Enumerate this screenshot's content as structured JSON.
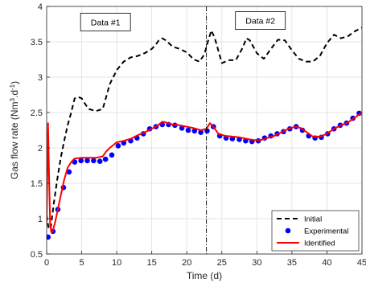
{
  "chart_data": {
    "type": "line",
    "xlabel": "Time (d)",
    "ylabel": "Gas flow rate (Nm",
    "ylabel_sup1": "3",
    "ylabel_mid": ".d",
    "ylabel_sup2": "-1",
    "ylabel_end": ")",
    "xlim": [
      0,
      45
    ],
    "ylim": [
      0.5,
      4
    ],
    "xticks": [
      0,
      5,
      10,
      15,
      20,
      25,
      30,
      35,
      40,
      45
    ],
    "yticks": [
      0.5,
      1,
      1.5,
      2,
      2.5,
      3,
      3.5,
      4
    ],
    "grid": true,
    "legend_position": "bottom-right",
    "split_line_x": 22.8,
    "annotations": [
      {
        "text": "Data #1",
        "x": 8.4,
        "y": 3.78
      },
      {
        "text": "Data #2",
        "x": 30.5,
        "y": 3.8
      }
    ],
    "series": [
      {
        "name": "Initial",
        "style": "dashed",
        "color": "#000000",
        "x": [
          0,
          0.3,
          0.6,
          1,
          1.5,
          2,
          2.5,
          3,
          3.5,
          4,
          4.5,
          5,
          5.5,
          6,
          7,
          8,
          8.5,
          9,
          9.5,
          10,
          11,
          12,
          13,
          14,
          15,
          15.5,
          16,
          16.5,
          17,
          18,
          19,
          20,
          21,
          21.8,
          22.5,
          23,
          23.5,
          24,
          25,
          26,
          27,
          28,
          28.5,
          29,
          30,
          31,
          32,
          33,
          34,
          35,
          36,
          37,
          38,
          39,
          40,
          41,
          42,
          43,
          44,
          45
        ],
        "y": [
          1.05,
          0.85,
          0.88,
          1.2,
          1.55,
          1.85,
          2.1,
          2.32,
          2.5,
          2.7,
          2.72,
          2.7,
          2.62,
          2.55,
          2.52,
          2.55,
          2.72,
          2.9,
          3.0,
          3.1,
          3.22,
          3.28,
          3.3,
          3.34,
          3.4,
          3.45,
          3.52,
          3.55,
          3.52,
          3.43,
          3.4,
          3.35,
          3.25,
          3.22,
          3.32,
          3.5,
          3.66,
          3.55,
          3.2,
          3.24,
          3.24,
          3.42,
          3.55,
          3.52,
          3.34,
          3.26,
          3.4,
          3.53,
          3.52,
          3.38,
          3.26,
          3.22,
          3.22,
          3.3,
          3.48,
          3.6,
          3.55,
          3.58,
          3.65,
          3.7
        ]
      },
      {
        "name": "Experimental",
        "style": "markers",
        "color": "#0000ff",
        "x": [
          0.2,
          0.9,
          1.6,
          2.4,
          3.2,
          4.0,
          4.9,
          5.8,
          6.7,
          7.6,
          8.4,
          9.3,
          10.2,
          11.0,
          12.0,
          12.9,
          13.8,
          14.7,
          15.6,
          16.5,
          17.4,
          18.3,
          19.3,
          20.2,
          21.1,
          22.0,
          22.9,
          23.8,
          24.7,
          25.6,
          26.5,
          27.5,
          28.4,
          29.3,
          30.2,
          31.1,
          32.0,
          32.9,
          33.8,
          34.7,
          35.6,
          36.5,
          37.4,
          38.3,
          39.2,
          40.1,
          41.0,
          41.9,
          42.8,
          43.7,
          44.6
        ],
        "y": [
          0.74,
          0.82,
          1.13,
          1.44,
          1.66,
          1.8,
          1.82,
          1.82,
          1.82,
          1.81,
          1.84,
          1.9,
          2.03,
          2.07,
          2.1,
          2.14,
          2.2,
          2.27,
          2.3,
          2.33,
          2.33,
          2.32,
          2.28,
          2.25,
          2.24,
          2.22,
          2.24,
          2.3,
          2.17,
          2.14,
          2.13,
          2.12,
          2.1,
          2.09,
          2.1,
          2.14,
          2.17,
          2.2,
          2.23,
          2.27,
          2.3,
          2.25,
          2.17,
          2.14,
          2.15,
          2.2,
          2.27,
          2.32,
          2.35,
          2.42,
          2.49
        ]
      },
      {
        "name": "Identified",
        "style": "solid",
        "color": "#ff0000",
        "x": [
          0,
          0.2,
          0.35,
          0.5,
          0.7,
          0.9,
          1.2,
          1.6,
          2.0,
          2.5,
          3.0,
          3.5,
          4.0,
          5.0,
          6.0,
          7.0,
          8.0,
          8.5,
          9.0,
          10.0,
          11.0,
          12.0,
          13.0,
          14.0,
          15.0,
          16.0,
          16.5,
          17.0,
          18.0,
          19.0,
          20.0,
          21.0,
          22.0,
          22.8,
          23.3,
          23.8,
          24.5,
          25.5,
          26.5,
          27.5,
          28.5,
          29.5,
          30.5,
          31.5,
          32.5,
          33.5,
          34.5,
          35.5,
          36.3,
          37.0,
          38.0,
          39.0,
          40.0,
          41.0,
          42.0,
          43.0,
          44.0,
          45.0
        ],
        "y": [
          0.95,
          2.35,
          1.6,
          0.9,
          0.8,
          0.83,
          0.95,
          1.13,
          1.32,
          1.55,
          1.72,
          1.8,
          1.85,
          1.86,
          1.86,
          1.86,
          1.88,
          1.95,
          2.0,
          2.08,
          2.1,
          2.13,
          2.18,
          2.22,
          2.27,
          2.33,
          2.37,
          2.36,
          2.33,
          2.32,
          2.3,
          2.28,
          2.25,
          2.27,
          2.35,
          2.3,
          2.2,
          2.17,
          2.16,
          2.15,
          2.13,
          2.11,
          2.11,
          2.14,
          2.17,
          2.22,
          2.27,
          2.3,
          2.28,
          2.23,
          2.16,
          2.16,
          2.2,
          2.27,
          2.32,
          2.36,
          2.43,
          2.5
        ]
      }
    ]
  }
}
